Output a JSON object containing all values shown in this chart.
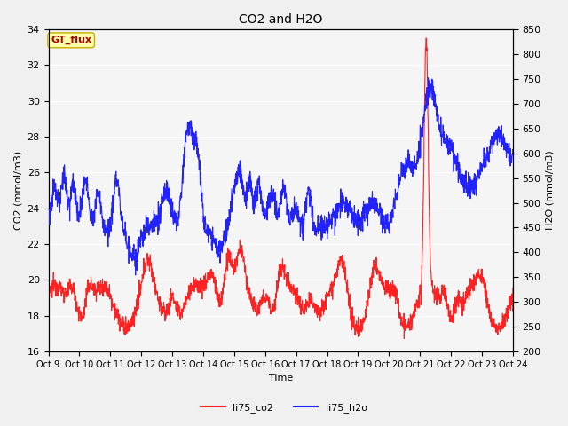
{
  "title": "CO2 and H2O",
  "xlabel": "Time",
  "ylabel_left": "CO2 (mmol/m3)",
  "ylabel_right": "H2O (mmol/m3)",
  "ylim_left": [
    16,
    34
  ],
  "ylim_right": [
    200,
    850
  ],
  "yticks_left": [
    16,
    18,
    20,
    22,
    24,
    26,
    28,
    30,
    32,
    34
  ],
  "yticks_right": [
    200,
    250,
    300,
    350,
    400,
    450,
    500,
    550,
    600,
    650,
    700,
    750,
    800,
    850
  ],
  "xtick_labels": [
    "Oct 9",
    "Oct 10",
    "Oct 11",
    "Oct 12",
    "Oct 13",
    "Oct 14",
    "Oct 15",
    "Oct 16",
    "Oct 17",
    "Oct 18",
    "Oct 19",
    "Oct 20",
    "Oct 21",
    "Oct 22",
    "Oct 23",
    "Oct 24"
  ],
  "color_co2": "#FF2222",
  "color_h2o": "#2222FF",
  "legend_label_co2": "li75_co2",
  "legend_label_h2o": "li75_h2o",
  "annotation_text": "GT_flux",
  "annotation_color": "#AA0000",
  "annotation_bg": "#FFFFAA",
  "annotation_edge": "#CCAA00",
  "background_color": "#EBEBEB",
  "plot_bg": "#F5F5F5",
  "grid_color": "#FFFFFF",
  "linewidth": 0.8,
  "fig_width": 6.4,
  "fig_height": 4.8,
  "dpi": 100
}
